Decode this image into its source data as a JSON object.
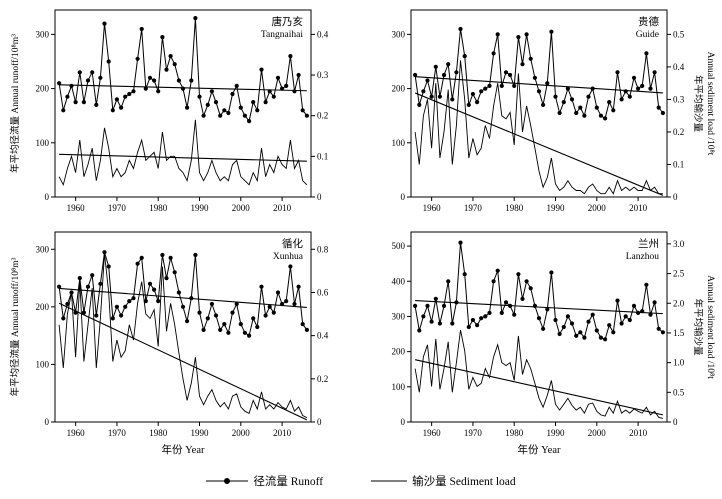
{
  "figure": {
    "x_axis_label": "年份 Year",
    "left_axis_title": "年平均径流量 Annual runoff/10⁸m³",
    "right_axis_title_cn": "年平均输沙量",
    "right_axis_title_en": "Annual sediment load /10⁸t",
    "legend": [
      {
        "key": "runoff",
        "label": "径流量 Runoff"
      },
      {
        "key": "sediment",
        "label": "输沙量 Sediment load"
      }
    ],
    "line_color": "#000000",
    "background": "#ffffff"
  },
  "chart_data": {
    "type": "line",
    "x": {
      "start_year": 1956,
      "end_year": 2016,
      "xlim": [
        1955,
        2017
      ],
      "ticks": [
        1960,
        1970,
        1980,
        1990,
        2000,
        2010
      ]
    },
    "panels": [
      {
        "id": "tangnaihai",
        "station_cn": "唐乃亥",
        "station_en": "Tangnaihai",
        "show_left_title": true,
        "show_right_title": false,
        "left_ylim": [
          0,
          345
        ],
        "left_ticks": [
          "0",
          "100",
          "200",
          "300"
        ],
        "right_ylim": [
          0,
          0.46
        ],
        "right_ticks": [
          "0",
          "0.1",
          "0.2",
          "0.3",
          "0.4"
        ],
        "runoff": [
          210,
          160,
          185,
          205,
          175,
          230,
          175,
          215,
          230,
          170,
          220,
          320,
          250,
          160,
          180,
          165,
          185,
          190,
          195,
          255,
          310,
          200,
          220,
          215,
          195,
          295,
          235,
          260,
          245,
          215,
          200,
          165,
          215,
          330,
          185,
          150,
          170,
          195,
          175,
          150,
          160,
          155,
          190,
          205,
          165,
          150,
          140,
          175,
          160,
          235,
          175,
          195,
          185,
          220,
          200,
          205,
          260,
          195,
          225,
          160,
          150
        ],
        "sediment": [
          0.05,
          0.03,
          0.07,
          0.1,
          0.06,
          0.14,
          0.05,
          0.08,
          0.12,
          0.04,
          0.09,
          0.17,
          0.12,
          0.05,
          0.07,
          0.05,
          0.06,
          0.09,
          0.07,
          0.11,
          0.14,
          0.09,
          0.1,
          0.11,
          0.07,
          0.16,
          0.09,
          0.1,
          0.1,
          0.07,
          0.06,
          0.04,
          0.09,
          0.19,
          0.06,
          0.04,
          0.06,
          0.09,
          0.06,
          0.04,
          0.05,
          0.04,
          0.08,
          0.09,
          0.05,
          0.04,
          0.03,
          0.06,
          0.04,
          0.12,
          0.05,
          0.08,
          0.06,
          0.1,
          0.08,
          0.07,
          0.14,
          0.07,
          0.09,
          0.04,
          0.03
        ],
        "runoff_trend": [
          207,
          196
        ],
        "sediment_trend": [
          0.105,
          0.088
        ]
      },
      {
        "id": "guide",
        "station_cn": "贵德",
        "station_en": "Guide",
        "show_left_title": false,
        "show_right_title": true,
        "left_ylim": [
          0,
          345
        ],
        "left_ticks": [
          "0",
          "100",
          "200",
          "300"
        ],
        "right_ylim": [
          0,
          0.575
        ],
        "right_ticks": [
          "0",
          "0.1",
          "0.2",
          "0.3",
          "0.4",
          "0.5"
        ],
        "runoff": [
          225,
          170,
          195,
          215,
          185,
          240,
          185,
          225,
          245,
          180,
          230,
          310,
          260,
          170,
          190,
          175,
          195,
          200,
          205,
          265,
          300,
          205,
          230,
          225,
          205,
          295,
          245,
          300,
          255,
          220,
          195,
          170,
          210,
          305,
          185,
          155,
          175,
          200,
          180,
          155,
          165,
          150,
          185,
          200,
          165,
          150,
          145,
          175,
          160,
          230,
          180,
          195,
          185,
          220,
          200,
          205,
          265,
          200,
          230,
          165,
          155
        ],
        "sediment": [
          0.2,
          0.1,
          0.25,
          0.3,
          0.15,
          0.35,
          0.12,
          0.2,
          0.33,
          0.1,
          0.22,
          0.42,
          0.3,
          0.12,
          0.18,
          0.13,
          0.15,
          0.22,
          0.18,
          0.28,
          0.35,
          0.25,
          0.24,
          0.26,
          0.16,
          0.38,
          0.2,
          0.28,
          0.22,
          0.15,
          0.08,
          0.03,
          0.06,
          0.12,
          0.04,
          0.02,
          0.03,
          0.05,
          0.03,
          0.02,
          0.02,
          0.01,
          0.03,
          0.04,
          0.02,
          0.01,
          0.01,
          0.03,
          0.01,
          0.05,
          0.02,
          0.03,
          0.02,
          0.03,
          0.02,
          0.02,
          0.05,
          0.02,
          0.03,
          0.01,
          0.01
        ],
        "runoff_trend": [
          222,
          192
        ],
        "sediment_trend": [
          0.32,
          0.005
        ]
      },
      {
        "id": "xunhua",
        "station_cn": "循化",
        "station_en": "Xunhua",
        "show_left_title": true,
        "show_right_title": false,
        "left_ylim": [
          0,
          330
        ],
        "left_ticks": [
          "0",
          "100",
          "200",
          "300"
        ],
        "right_ylim": [
          0,
          0.88
        ],
        "right_ticks": [
          "0",
          "0.2",
          "0.4",
          "0.6",
          "0.8"
        ],
        "runoff": [
          235,
          180,
          205,
          225,
          190,
          250,
          190,
          235,
          255,
          185,
          240,
          295,
          270,
          180,
          200,
          185,
          200,
          210,
          215,
          275,
          285,
          210,
          240,
          230,
          210,
          290,
          250,
          285,
          260,
          225,
          200,
          175,
          215,
          290,
          190,
          160,
          180,
          205,
          185,
          160,
          170,
          155,
          190,
          205,
          170,
          155,
          150,
          180,
          165,
          235,
          185,
          200,
          190,
          225,
          205,
          210,
          270,
          205,
          235,
          170,
          160
        ],
        "sediment": [
          0.45,
          0.25,
          0.5,
          0.6,
          0.3,
          0.65,
          0.28,
          0.45,
          0.62,
          0.25,
          0.48,
          0.78,
          0.6,
          0.28,
          0.38,
          0.3,
          0.33,
          0.45,
          0.38,
          0.55,
          0.65,
          0.5,
          0.48,
          0.52,
          0.35,
          0.72,
          0.42,
          0.55,
          0.45,
          0.32,
          0.2,
          0.1,
          0.18,
          0.3,
          0.12,
          0.08,
          0.12,
          0.15,
          0.1,
          0.07,
          0.09,
          0.06,
          0.12,
          0.13,
          0.07,
          0.05,
          0.04,
          0.1,
          0.06,
          0.14,
          0.06,
          0.08,
          0.06,
          0.09,
          0.07,
          0.06,
          0.1,
          0.05,
          0.07,
          0.03,
          0.02
        ],
        "runoff_trend": [
          232,
          199
        ],
        "sediment_trend": [
          0.55,
          0.01
        ]
      },
      {
        "id": "lanzhou",
        "station_cn": "兰州",
        "station_en": "Lanzhou",
        "show_left_title": false,
        "show_right_title": true,
        "left_ylim": [
          0,
          540
        ],
        "left_ticks": [
          "0",
          "100",
          "200",
          "300",
          "400",
          "500"
        ],
        "right_ylim": [
          0,
          3.2
        ],
        "right_ticks": [
          "0",
          "0.5",
          "1.0",
          "1.5",
          "2.0",
          "2.5",
          "3.0"
        ],
        "runoff": [
          330,
          260,
          300,
          330,
          285,
          350,
          280,
          330,
          400,
          280,
          340,
          510,
          420,
          270,
          290,
          275,
          295,
          300,
          310,
          400,
          430,
          310,
          340,
          330,
          305,
          420,
          350,
          400,
          380,
          330,
          295,
          265,
          320,
          425,
          290,
          250,
          270,
          300,
          280,
          245,
          255,
          240,
          285,
          305,
          260,
          240,
          235,
          275,
          255,
          345,
          280,
          300,
          290,
          330,
          310,
          315,
          390,
          305,
          340,
          265,
          255
        ],
        "sediment": [
          0.9,
          0.5,
          1.1,
          1.3,
          0.6,
          1.4,
          0.55,
          0.9,
          1.35,
          0.5,
          1.0,
          1.55,
          1.2,
          0.55,
          0.75,
          0.6,
          0.65,
          0.9,
          0.75,
          1.1,
          1.3,
          1.0,
          0.95,
          1.0,
          0.7,
          1.45,
          0.8,
          1.05,
          0.9,
          0.65,
          0.4,
          0.25,
          0.45,
          0.7,
          0.3,
          0.2,
          0.3,
          0.4,
          0.28,
          0.2,
          0.25,
          0.15,
          0.3,
          0.32,
          0.18,
          0.12,
          0.1,
          0.25,
          0.15,
          0.35,
          0.15,
          0.2,
          0.15,
          0.22,
          0.18,
          0.15,
          0.25,
          0.12,
          0.18,
          0.08,
          0.06
        ],
        "runoff_trend": [
          345,
          308
        ],
        "sediment_trend": [
          1.05,
          0.12
        ]
      }
    ]
  }
}
